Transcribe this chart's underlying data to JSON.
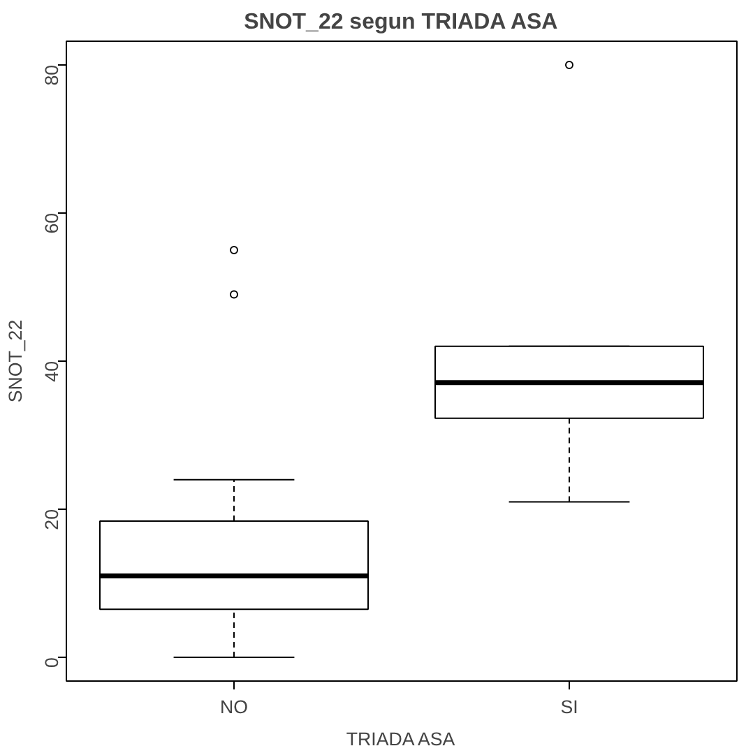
{
  "chart_data": {
    "type": "box",
    "title": "SNOT_22 segun TRIADA ASA",
    "xlabel": "TRIADA ASA",
    "ylabel": "SNOT_22",
    "categories": [
      "NO",
      "SI"
    ],
    "boxes": [
      {
        "low": 0,
        "q1": 6.5,
        "median": 11,
        "q3": 18.4,
        "high": 24,
        "outliers": [
          49,
          55
        ]
      },
      {
        "low": 21,
        "q1": 32.3,
        "median": 37.1,
        "q3": 42,
        "high": 42,
        "outliers": [
          80
        ]
      }
    ],
    "ylim": [
      -3.2,
      83.2
    ],
    "yticks": [
      0,
      20,
      40,
      60,
      80
    ]
  }
}
